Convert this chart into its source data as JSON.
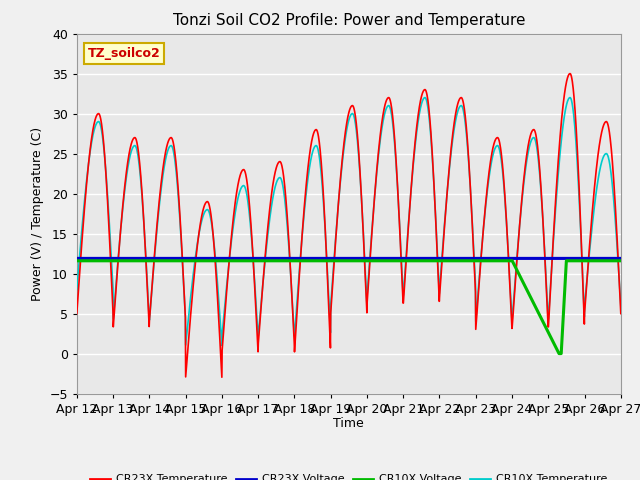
{
  "title": "Tonzi Soil CO2 Profile: Power and Temperature",
  "xlabel": "Time",
  "ylabel": "Power (V) / Temperature (C)",
  "ylim": [
    -5,
    40
  ],
  "xlim": [
    0,
    15
  ],
  "bg_color": "#f0f0f0",
  "plot_bg": "#e8e8e8",
  "annotation_text": "TZ_soilco2",
  "annotation_bg": "#ffffcc",
  "annotation_border": "#ccaa00",
  "xtick_labels": [
    "Apr 12",
    "Apr 13",
    "Apr 14",
    "Apr 15",
    "Apr 16",
    "Apr 17",
    "Apr 18",
    "Apr 19",
    "Apr 20",
    "Apr 21",
    "Apr 22",
    "Apr 23",
    "Apr 24",
    "Apr 25",
    "Apr 26",
    "Apr 27"
  ],
  "cr23x_temp_color": "#ff0000",
  "cr23x_volt_color": "#0000cc",
  "cr10x_volt_color": "#00bb00",
  "cr10x_temp_color": "#00cccc",
  "line_width": 1.2,
  "volt_value": 11.9,
  "cr10x_volt_value": 11.6,
  "day_peaks_cr23x": [
    30,
    27,
    27,
    19,
    23,
    24,
    28,
    31,
    32,
    33,
    32,
    27,
    28,
    35,
    29
  ],
  "day_troughs_cr23x": [
    5,
    3,
    4,
    -3,
    0,
    1,
    0,
    5,
    6,
    6,
    7,
    3,
    3,
    3,
    5
  ],
  "day_peaks_cr10x": [
    29,
    26,
    26,
    18,
    21,
    22,
    26,
    30,
    31,
    32,
    31,
    26,
    27,
    32,
    25
  ],
  "day_troughs_cr10x": [
    8,
    4,
    4,
    1,
    2,
    2,
    2,
    6,
    7,
    7,
    8,
    4,
    4,
    4,
    6
  ],
  "cr10x_start_day": 0,
  "cr10x_volt_drop_start": 12.0,
  "cr10x_volt_drop_end": 13.3,
  "cr10x_volt_zero_end": 13.35,
  "cr10x_volt_rise_end": 13.5
}
